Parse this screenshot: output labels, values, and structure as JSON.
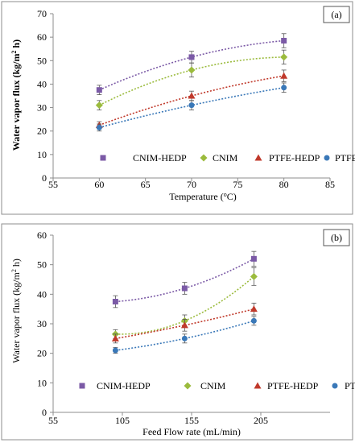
{
  "chart_data": [
    {
      "type": "scatter",
      "panel_label": "(a)",
      "xlabel": "Temperature (",
      "xlabel_sup": "o",
      "xlabel_end": "C)",
      "ylabel": "Water vapor flux (kg/m",
      "ylabel_sup": "2",
      "ylabel_end": " h)",
      "xlim": [
        55,
        85
      ],
      "ylim": [
        0,
        70
      ],
      "xticks": [
        55,
        60,
        65,
        70,
        75,
        80,
        85
      ],
      "yticks": [
        0,
        10,
        20,
        30,
        40,
        50,
        60,
        70
      ],
      "grid": false,
      "legend_position": "inside-bottom",
      "trendline": "polynomial, dotted",
      "series": [
        {
          "name": "CNIM-HEDP",
          "marker": "square",
          "color": "#7b5aa6",
          "x": [
            60,
            70,
            80
          ],
          "y": [
            37.5,
            51.5,
            58.5
          ],
          "yerr": [
            2,
            2.5,
            3
          ]
        },
        {
          "name": "CNIM",
          "marker": "diamond",
          "color": "#9bbb3d",
          "x": [
            60,
            70,
            80
          ],
          "y": [
            31,
            46,
            51.5
          ],
          "yerr": [
            2,
            3,
            3
          ]
        },
        {
          "name": "PTFE-HEDP",
          "marker": "triangle",
          "color": "#c0392b",
          "x": [
            60,
            70,
            80
          ],
          "y": [
            22.5,
            35,
            43.5
          ],
          "yerr": [
            1.5,
            2,
            2.5
          ]
        },
        {
          "name": "PTFE",
          "marker": "circle",
          "color": "#3a78b8",
          "x": [
            60,
            70,
            80
          ],
          "y": [
            21.5,
            31,
            38.5
          ],
          "yerr": [
            1.5,
            2,
            2
          ]
        }
      ]
    },
    {
      "type": "scatter",
      "panel_label": "(b)",
      "xlabel": "Feed Flow rate (mL/min)",
      "xlabel_sup": "",
      "xlabel_end": "",
      "ylabel": "Water vapor flux (kg/m",
      "ylabel_sup": "2",
      "ylabel_end": " h)",
      "xlim": [
        55,
        255
      ],
      "ylim": [
        0,
        60
      ],
      "xticks": [
        55,
        105,
        155,
        205
      ],
      "yticks": [
        0,
        10,
        20,
        30,
        40,
        50,
        60
      ],
      "grid": false,
      "legend_position": "inside-bottom",
      "trendline": "polynomial, dotted",
      "series": [
        {
          "name": "CNIM-HEDP",
          "marker": "square",
          "color": "#7b5aa6",
          "x": [
            100,
            150,
            200
          ],
          "y": [
            37.5,
            42,
            52
          ],
          "yerr": [
            2,
            2,
            2.5
          ]
        },
        {
          "name": "CNIM",
          "marker": "diamond",
          "color": "#9bbb3d",
          "x": [
            100,
            150,
            200
          ],
          "y": [
            26.5,
            31,
            46
          ],
          "yerr": [
            1.5,
            2,
            3
          ]
        },
        {
          "name": "PTFE-HEDP",
          "marker": "triangle",
          "color": "#c0392b",
          "x": [
            100,
            150,
            200
          ],
          "y": [
            25,
            29.5,
            35
          ],
          "yerr": [
            1.5,
            2,
            2
          ]
        },
        {
          "name": "PTFE",
          "marker": "circle",
          "color": "#3a78b8",
          "x": [
            100,
            150,
            200
          ],
          "y": [
            21,
            25,
            31
          ],
          "yerr": [
            1,
            1.5,
            1.5
          ]
        }
      ]
    }
  ]
}
